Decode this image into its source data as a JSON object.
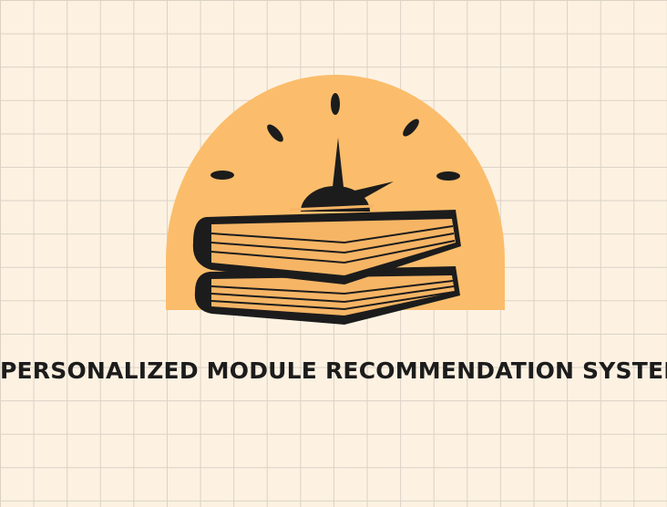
{
  "logo": {
    "icon": "books-with-clock-icon",
    "colors": {
      "background": "#fdf2e2",
      "grid": "#d9d2c6",
      "sun": "#fbbd6b",
      "ink": "#1c1c1c",
      "pages": "#f6b565"
    }
  },
  "title": "PERSONALIZED MODULE RECOMMENDATION SYSTEM"
}
